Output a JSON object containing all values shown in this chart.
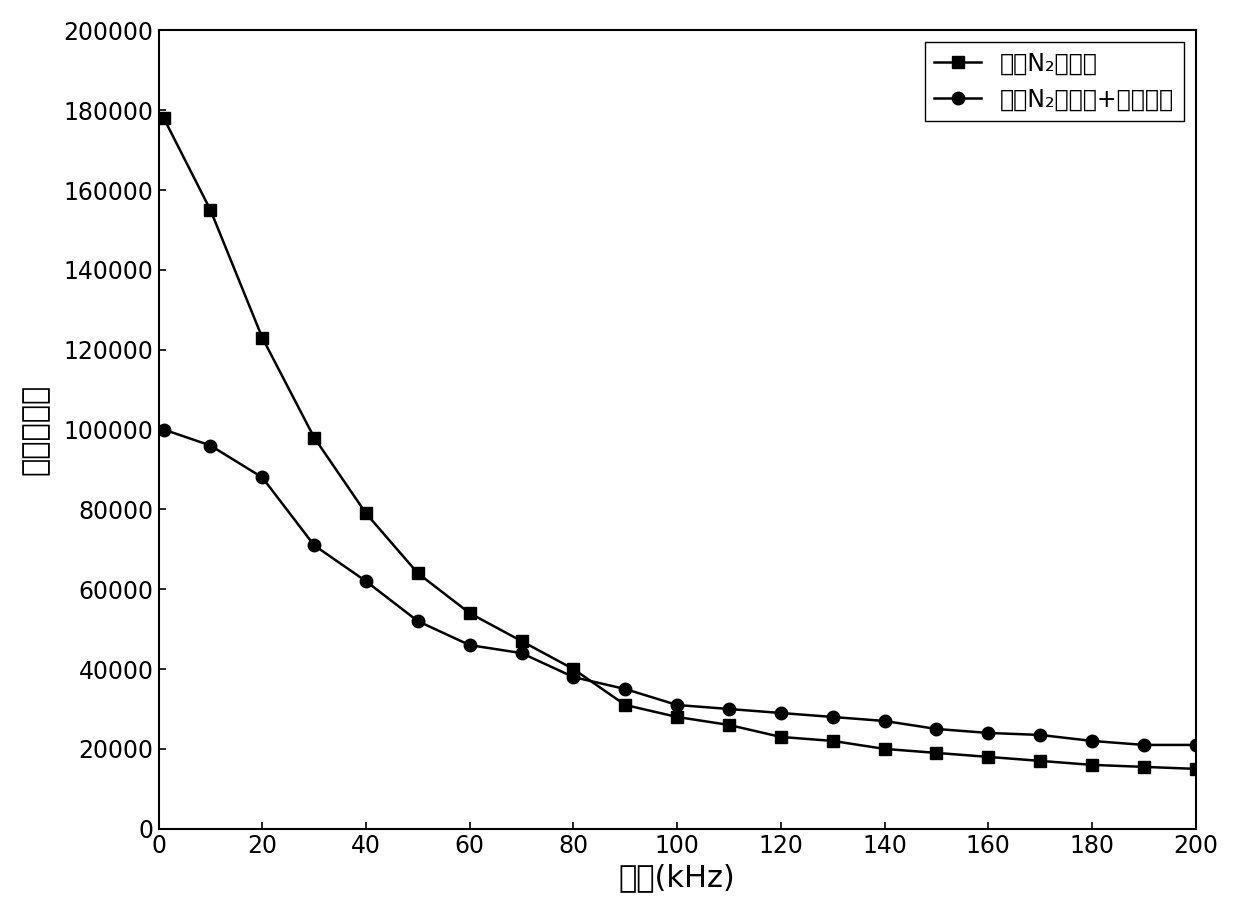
{
  "series1_label": "普通N₂热处理",
  "series2_label": "普通N₂热处理+横磁处理",
  "series1_x": [
    1,
    10,
    20,
    30,
    40,
    50,
    60,
    70,
    80,
    90,
    100,
    110,
    120,
    130,
    140,
    150,
    160,
    170,
    180,
    190,
    200
  ],
  "series1_y": [
    178000,
    155000,
    123000,
    98000,
    79000,
    64000,
    54000,
    47000,
    40000,
    31000,
    28000,
    26000,
    23000,
    22000,
    20000,
    19000,
    18000,
    17000,
    16000,
    15500,
    15000
  ],
  "series2_x": [
    1,
    10,
    20,
    30,
    40,
    50,
    60,
    70,
    80,
    90,
    100,
    110,
    120,
    130,
    140,
    150,
    160,
    170,
    180,
    190,
    200
  ],
  "series2_y": [
    100000,
    96000,
    88000,
    71000,
    62000,
    52000,
    46000,
    44000,
    38000,
    35000,
    31000,
    30000,
    29000,
    28000,
    27000,
    25000,
    24000,
    23500,
    22000,
    21000,
    21000
  ],
  "xlabel": "频率(kHz)",
  "ylabel": "有效磁导率",
  "xlim": [
    0,
    200
  ],
  "ylim": [
    0,
    200000
  ],
  "yticks": [
    0,
    20000,
    40000,
    60000,
    80000,
    100000,
    120000,
    140000,
    160000,
    180000,
    200000
  ],
  "xticks": [
    0,
    20,
    40,
    60,
    80,
    100,
    120,
    140,
    160,
    180,
    200
  ],
  "line_color": "#000000",
  "marker1": "s",
  "marker2": "o",
  "markersize": 9,
  "linewidth": 1.8,
  "legend_fontsize": 17,
  "axis_label_fontsize": 22,
  "tick_fontsize": 17,
  "background_color": "#ffffff"
}
